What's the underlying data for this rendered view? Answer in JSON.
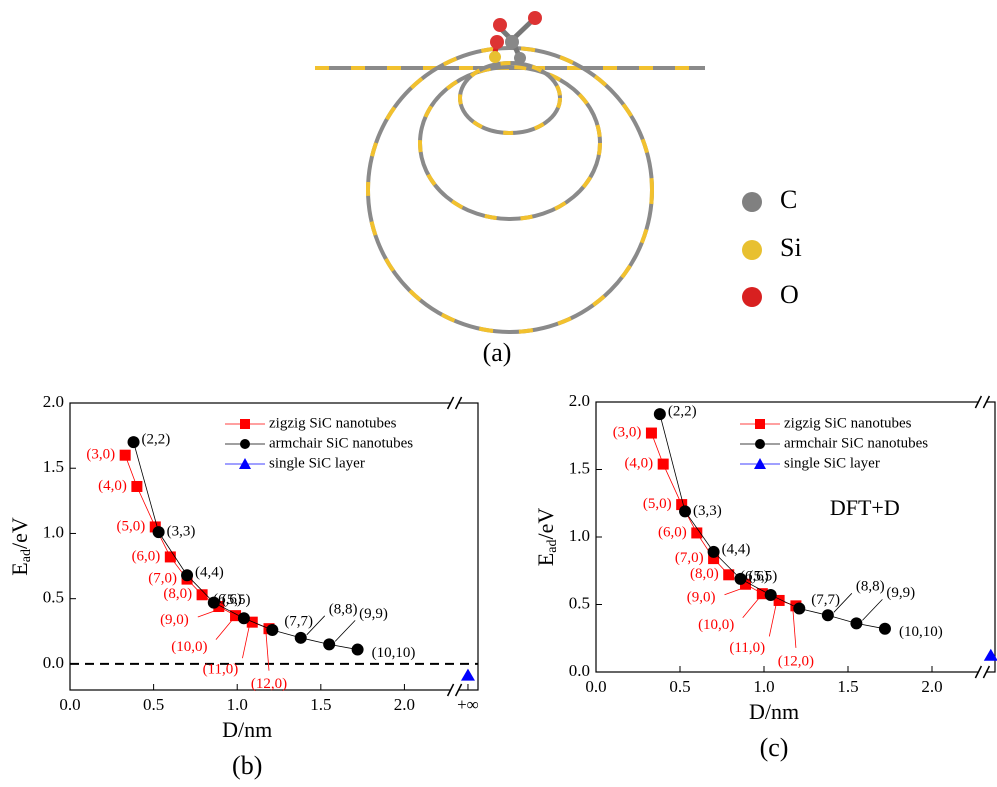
{
  "panel_a": {
    "caption": "(a)",
    "legend": [
      "C",
      "Si",
      "O"
    ]
  },
  "chart_data": [
    {
      "type": "line",
      "caption": "(b)",
      "xlabel": "D/nm",
      "ylabel": [
        "E",
        "ad",
        "/eV"
      ],
      "xlim": [
        0,
        2.44
      ],
      "ylim": [
        -0.2,
        2.0
      ],
      "xticks": [
        {
          "value": 0,
          "label": "0.0"
        },
        0.5,
        {
          "value": 1,
          "label": "1.0"
        },
        1.5,
        {
          "value": 2,
          "label": "2.0"
        },
        {
          "value": 2.38,
          "label": "+∞"
        }
      ],
      "yticks": [
        {
          "value": 0,
          "label": "0.0"
        },
        0.5,
        {
          "value": 1,
          "label": "1.0"
        },
        1.5,
        {
          "value": 2,
          "label": "2.0"
        }
      ],
      "axis_break": 2.3,
      "reference_line": 0,
      "series": [
        {
          "name": "zigzig SiC nanotubes",
          "color": "#ff0000",
          "marker": "square",
          "x": [
            0.33,
            0.4,
            0.51,
            0.6,
            0.7,
            0.79,
            0.89,
            0.99,
            1.09,
            1.19
          ],
          "values": [
            1.6,
            1.36,
            1.05,
            0.82,
            0.65,
            0.53,
            0.44,
            0.37,
            0.32,
            0.27
          ],
          "labels": [
            "(3,0)",
            "(4,0)",
            "(5,0)",
            "(6,0)",
            "(7,0)",
            "(8,0)",
            "(9,0)",
            "(10,0)",
            "(11,0)",
            "(12,0)"
          ]
        },
        {
          "name": "armchair SiC nanotubes",
          "color": "#000000",
          "marker": "circle",
          "x": [
            0.38,
            0.53,
            0.7,
            0.86,
            1.04,
            1.21,
            1.38,
            1.55,
            1.72
          ],
          "values": [
            1.7,
            1.01,
            0.68,
            0.47,
            0.35,
            0.26,
            0.2,
            0.15,
            0.11
          ],
          "labels": [
            "(2,2)",
            "(3,3)",
            "(4,4)",
            "(5,5)",
            "(6,6)",
            "(7,7)",
            "(8,8)",
            "(9,9)",
            "(10,10)"
          ]
        },
        {
          "name": "single SiC layer",
          "color": "#0000ff",
          "marker": "triangle",
          "x": [
            2.38
          ],
          "values": [
            -0.09
          ]
        }
      ]
    },
    {
      "type": "line",
      "caption": "(c)",
      "xlabel": "D/nm",
      "ylabel": [
        "E",
        "ad",
        "/eV"
      ],
      "annotation": "DFT+D",
      "xlim": [
        0,
        2.375
      ],
      "ylim": [
        0,
        2.0
      ],
      "xticks": [
        {
          "value": 0,
          "label": "0.0"
        },
        0.5,
        {
          "value": 1,
          "label": "1.0"
        },
        1.5,
        {
          "value": 2,
          "label": "2.0"
        }
      ],
      "yticks": [
        {
          "value": 0,
          "label": "0.0"
        },
        0.5,
        {
          "value": 1,
          "label": "1.0"
        },
        1.5,
        {
          "value": 2,
          "label": "2.0"
        }
      ],
      "axis_break": 2.3,
      "series": [
        {
          "name": "zigzig SiC nanotubes",
          "color": "#ff0000",
          "marker": "square",
          "x": [
            0.33,
            0.4,
            0.51,
            0.6,
            0.7,
            0.79,
            0.89,
            0.99,
            1.09,
            1.19
          ],
          "values": [
            1.77,
            1.54,
            1.24,
            1.03,
            0.84,
            0.72,
            0.65,
            0.58,
            0.53,
            0.49
          ],
          "labels": [
            "(3,0)",
            "(4,0)",
            "(5,0)",
            "(6,0)",
            "(7,0)",
            "(8,0)",
            "(9,0)",
            "(10,0)",
            "(11,0)",
            "(12,0)"
          ]
        },
        {
          "name": "armchair SiC nanotubes",
          "color": "#000000",
          "marker": "circle",
          "x": [
            0.38,
            0.53,
            0.7,
            0.86,
            1.04,
            1.21,
            1.38,
            1.55,
            1.72
          ],
          "values": [
            1.91,
            1.19,
            0.89,
            0.69,
            0.57,
            0.47,
            0.42,
            0.36,
            0.32
          ],
          "labels": [
            "(2,2)",
            "(3,3)",
            "(4,4)",
            "(5,5)",
            "(6,6)",
            "(7,7)",
            "(8,8)",
            "(9,9)",
            "(10,10)"
          ]
        },
        {
          "name": "single SiC layer",
          "color": "#0000ff",
          "marker": "triangle",
          "x": [
            2.35
          ],
          "values": [
            0.12
          ]
        }
      ]
    }
  ]
}
